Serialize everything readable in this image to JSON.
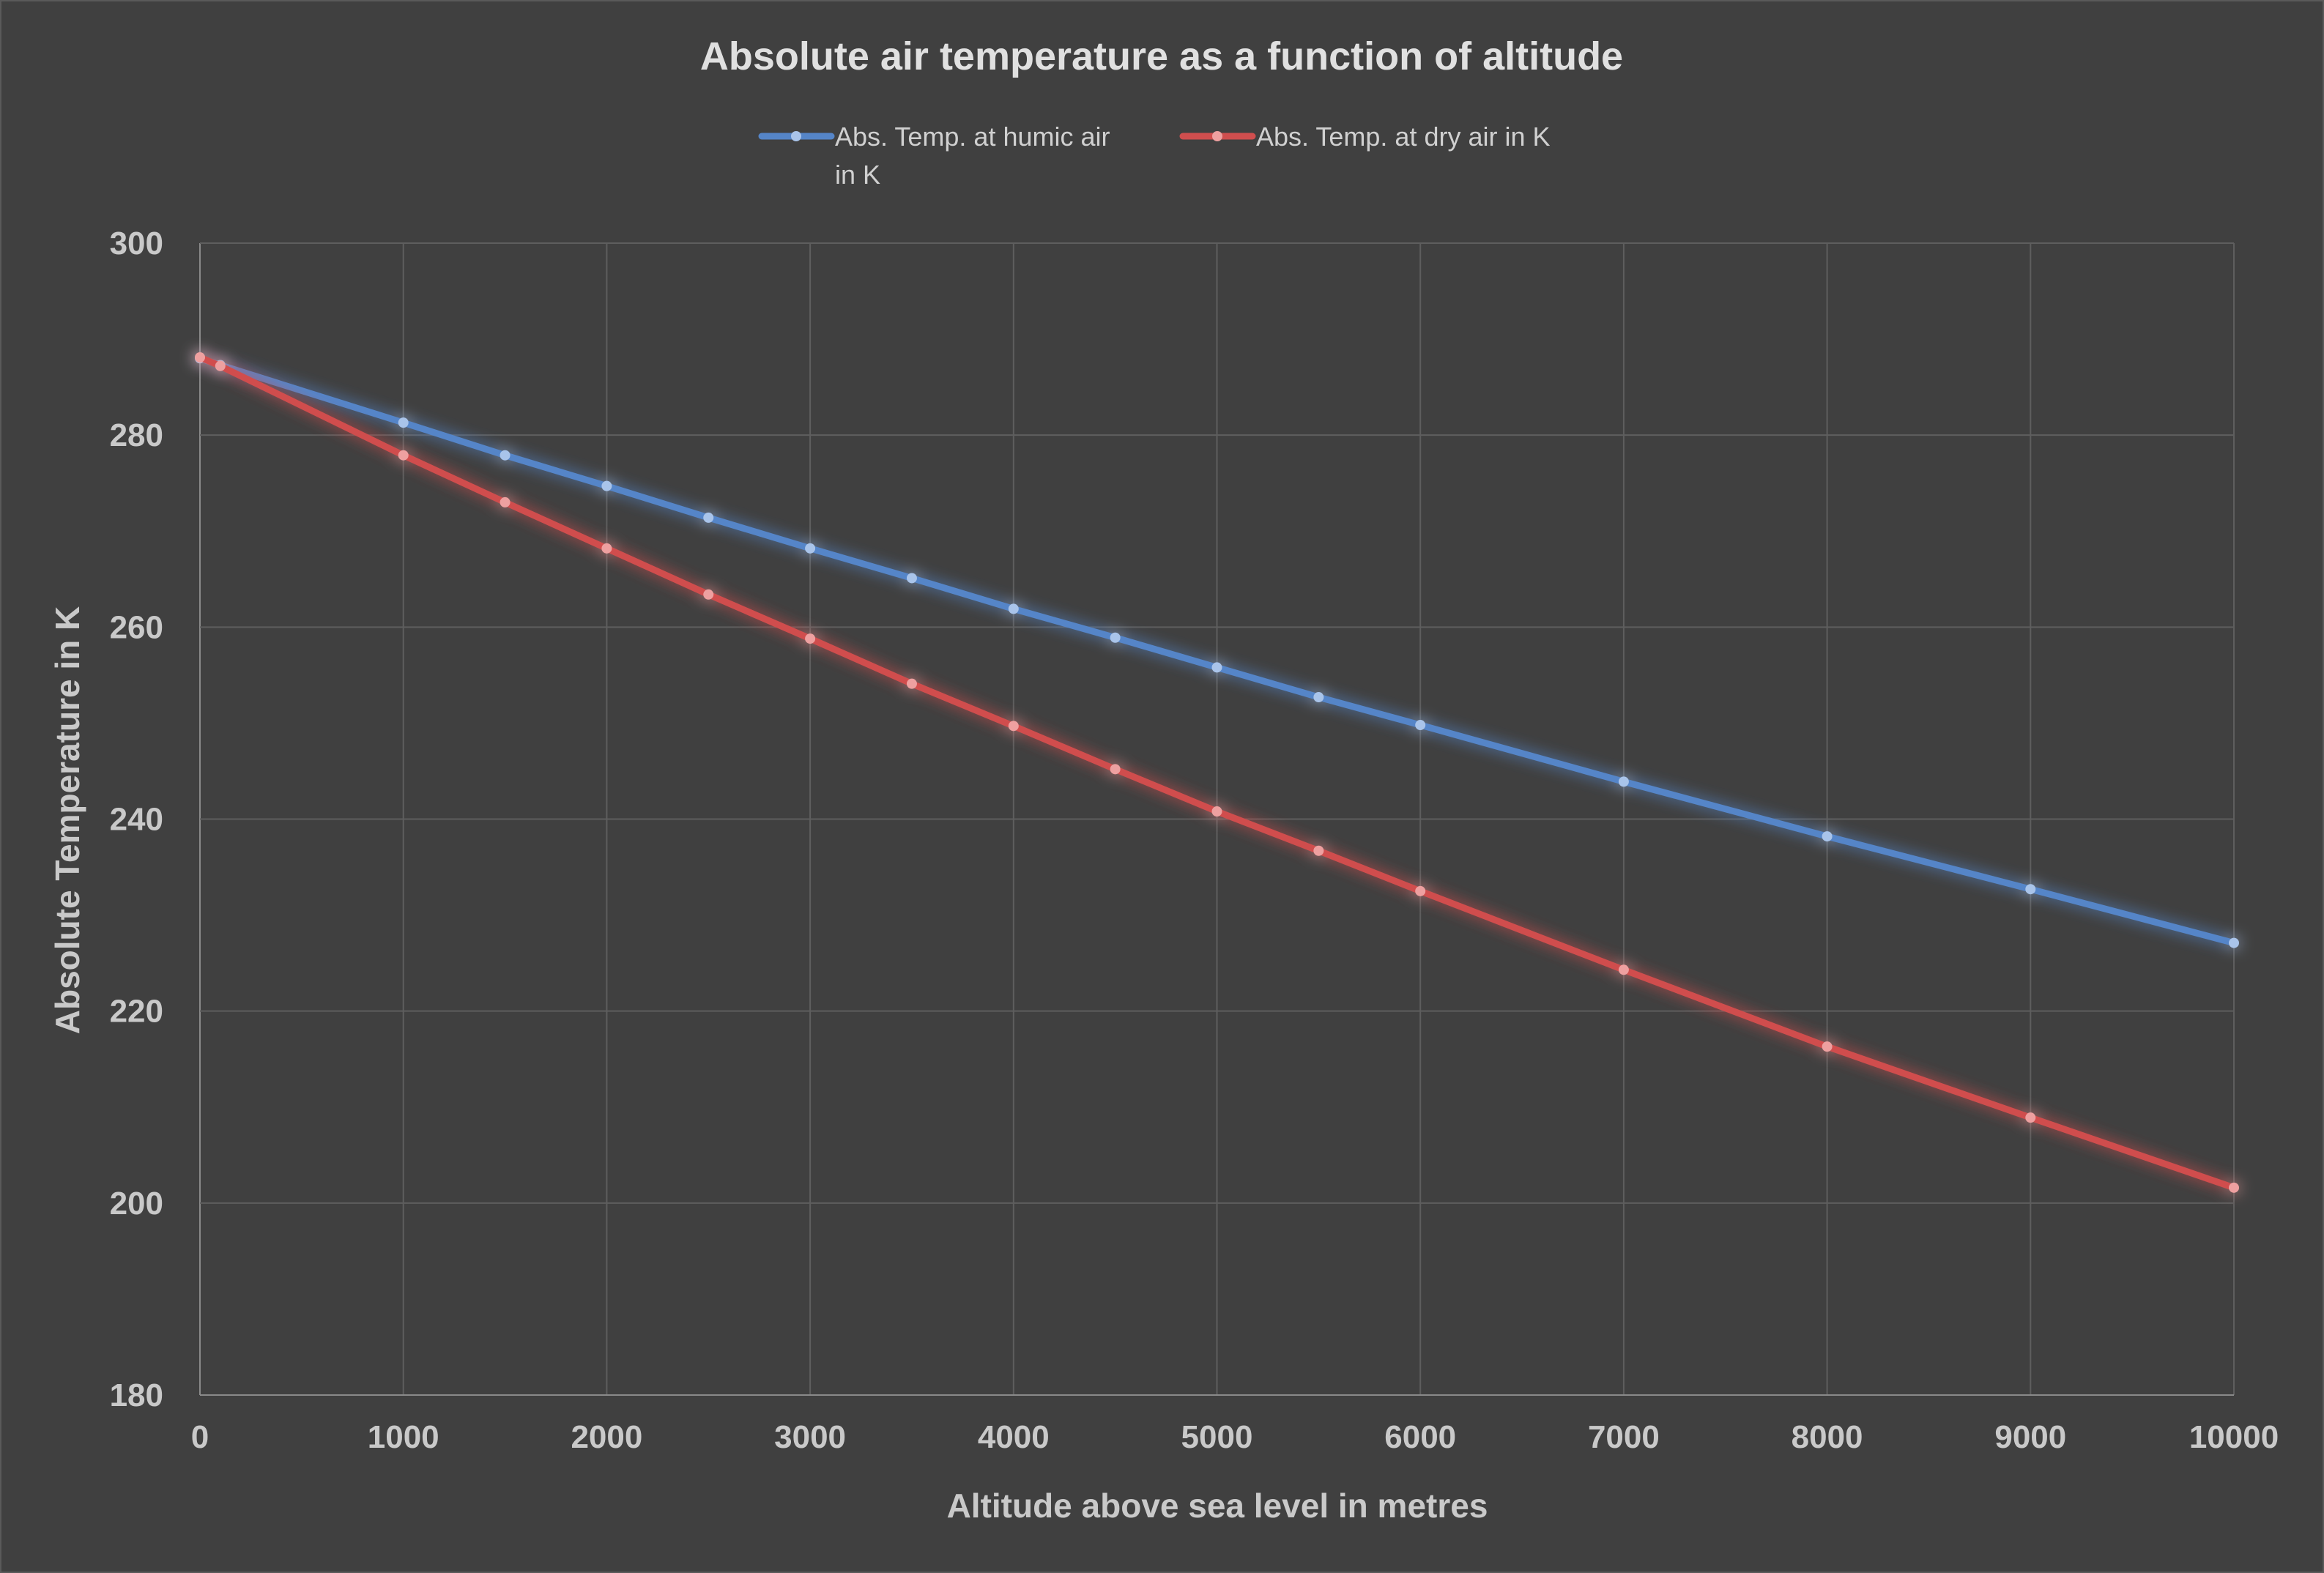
{
  "chart_data": {
    "type": "line",
    "title": "Absolute air temperature as a function of altitude",
    "xlabel": "Altitude above sea level in metres",
    "ylabel": "Absolute Temperature in K",
    "xlim": [
      0,
      10000
    ],
    "ylim": [
      180,
      300
    ],
    "xticks": [
      0,
      1000,
      2000,
      3000,
      4000,
      5000,
      6000,
      7000,
      8000,
      9000,
      10000
    ],
    "yticks": [
      180,
      200,
      220,
      240,
      260,
      280,
      300
    ],
    "grid": true,
    "legend_position": "top",
    "x": [
      0,
      100,
      1000,
      1500,
      2000,
      2500,
      3000,
      3500,
      4000,
      4500,
      5000,
      5500,
      6000,
      7000,
      8000,
      9000,
      10000
    ],
    "series": [
      {
        "name": "Abs. Temp. at humic air in K",
        "legend_lines": [
          "Abs. Temp. at humic air",
          "in K"
        ],
        "color": "#5585c8",
        "marker_color": "#a9c4ea",
        "values": [
          288.0,
          287.3,
          281.3,
          277.9,
          274.7,
          271.4,
          268.2,
          265.1,
          261.9,
          258.9,
          255.8,
          252.7,
          249.8,
          243.9,
          238.2,
          232.7,
          227.1
        ]
      },
      {
        "name": "Abs.  Temp. at dry air in  K",
        "legend_lines": [
          "Abs.  Temp. at dry air in  K"
        ],
        "color": "#d04e4e",
        "marker_color": "#eea0a0",
        "values": [
          288.1,
          287.2,
          277.9,
          273.0,
          268.2,
          263.4,
          258.8,
          254.1,
          249.7,
          245.2,
          240.8,
          236.7,
          232.5,
          224.3,
          216.3,
          208.9,
          201.6
        ]
      }
    ]
  }
}
